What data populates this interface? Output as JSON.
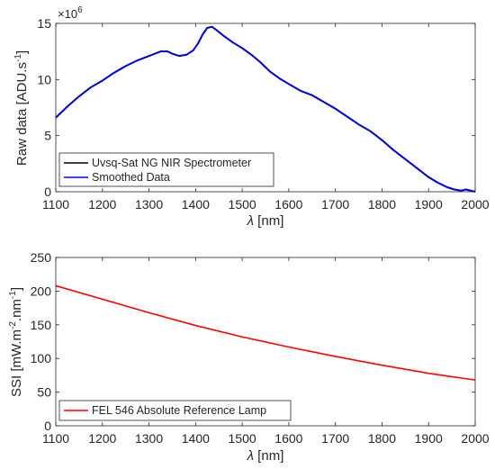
{
  "chart_data": [
    {
      "type": "line",
      "xlabel_symbol": "λ",
      "xlabel_unit": " [nm]",
      "ylabel": "Raw data [ADU.s",
      "ylabel_sup": "-1",
      "ylabel_close": "]",
      "y_multiplier_base": "×10",
      "y_multiplier_exp": "6",
      "xlim": [
        1100,
        2000
      ],
      "ylim": [
        0,
        15
      ],
      "xticks": [
        "1100",
        "1200",
        "1300",
        "1400",
        "1500",
        "1600",
        "1700",
        "1800",
        "1900",
        "2000"
      ],
      "yticks": [
        "0",
        "5",
        "10",
        "15"
      ],
      "legend_position": "bottom-left",
      "series": [
        {
          "name": "Uvsq-Sat NG NIR Spectrometer",
          "color": "#000000",
          "x": [
            1100,
            1125,
            1150,
            1175,
            1200,
            1225,
            1250,
            1275,
            1300,
            1325,
            1340,
            1350,
            1365,
            1380,
            1395,
            1405,
            1415,
            1425,
            1435,
            1445,
            1460,
            1480,
            1500,
            1520,
            1540,
            1560,
            1580,
            1600,
            1625,
            1650,
            1675,
            1700,
            1725,
            1750,
            1775,
            1800,
            1825,
            1850,
            1875,
            1900,
            1920,
            1940,
            1955,
            1970,
            1980,
            1990,
            2000
          ],
          "y": [
            6.6,
            7.6,
            8.5,
            9.3,
            9.9,
            10.6,
            11.2,
            11.7,
            12.1,
            12.5,
            12.5,
            12.3,
            12.1,
            12.2,
            12.6,
            13.2,
            14.0,
            14.6,
            14.7,
            14.4,
            13.9,
            13.3,
            12.8,
            12.2,
            11.5,
            10.7,
            10.1,
            9.6,
            9.0,
            8.6,
            8.0,
            7.4,
            6.7,
            6.0,
            5.4,
            4.6,
            3.7,
            2.9,
            2.1,
            1.3,
            0.8,
            0.4,
            0.2,
            0.1,
            0.2,
            0.1,
            0.0
          ]
        },
        {
          "name": "Smoothed Data",
          "color": "#0000ff",
          "x": [
            1100,
            1125,
            1150,
            1175,
            1200,
            1225,
            1250,
            1275,
            1300,
            1325,
            1340,
            1350,
            1365,
            1380,
            1395,
            1405,
            1415,
            1425,
            1435,
            1445,
            1460,
            1480,
            1500,
            1520,
            1540,
            1560,
            1580,
            1600,
            1625,
            1650,
            1675,
            1700,
            1725,
            1750,
            1775,
            1800,
            1825,
            1850,
            1875,
            1900,
            1920,
            1940,
            1955,
            1970,
            1980,
            1990,
            2000
          ],
          "y": [
            6.6,
            7.6,
            8.5,
            9.3,
            9.9,
            10.6,
            11.2,
            11.7,
            12.1,
            12.5,
            12.5,
            12.3,
            12.1,
            12.2,
            12.6,
            13.2,
            14.0,
            14.6,
            14.7,
            14.4,
            13.9,
            13.3,
            12.8,
            12.2,
            11.5,
            10.7,
            10.1,
            9.6,
            9.0,
            8.6,
            8.0,
            7.4,
            6.7,
            6.0,
            5.4,
            4.6,
            3.7,
            2.9,
            2.1,
            1.3,
            0.8,
            0.4,
            0.2,
            0.1,
            0.2,
            0.1,
            0.0
          ]
        }
      ]
    },
    {
      "type": "line",
      "xlabel_symbol": "λ",
      "xlabel_unit": " [nm]",
      "ylabel": "SSI [mW.m",
      "ylabel_sup": "-2",
      "ylabel_mid": ".nm",
      "ylabel_sup2": "-1",
      "ylabel_close": "]",
      "xlim": [
        1100,
        2000
      ],
      "ylim": [
        0,
        250
      ],
      "xticks": [
        "1100",
        "1200",
        "1300",
        "1400",
        "1500",
        "1600",
        "1700",
        "1800",
        "1900",
        "2000"
      ],
      "yticks": [
        "0",
        "50",
        "100",
        "150",
        "200",
        "250"
      ],
      "legend_position": "bottom-left",
      "series": [
        {
          "name": "FEL 546 Absolute Reference Lamp",
          "color": "#ff0000",
          "x": [
            1100,
            1200,
            1300,
            1400,
            1500,
            1600,
            1700,
            1800,
            1900,
            2000
          ],
          "y": [
            208,
            188,
            168,
            149,
            132,
            117,
            103,
            90,
            78,
            68
          ]
        }
      ]
    }
  ]
}
